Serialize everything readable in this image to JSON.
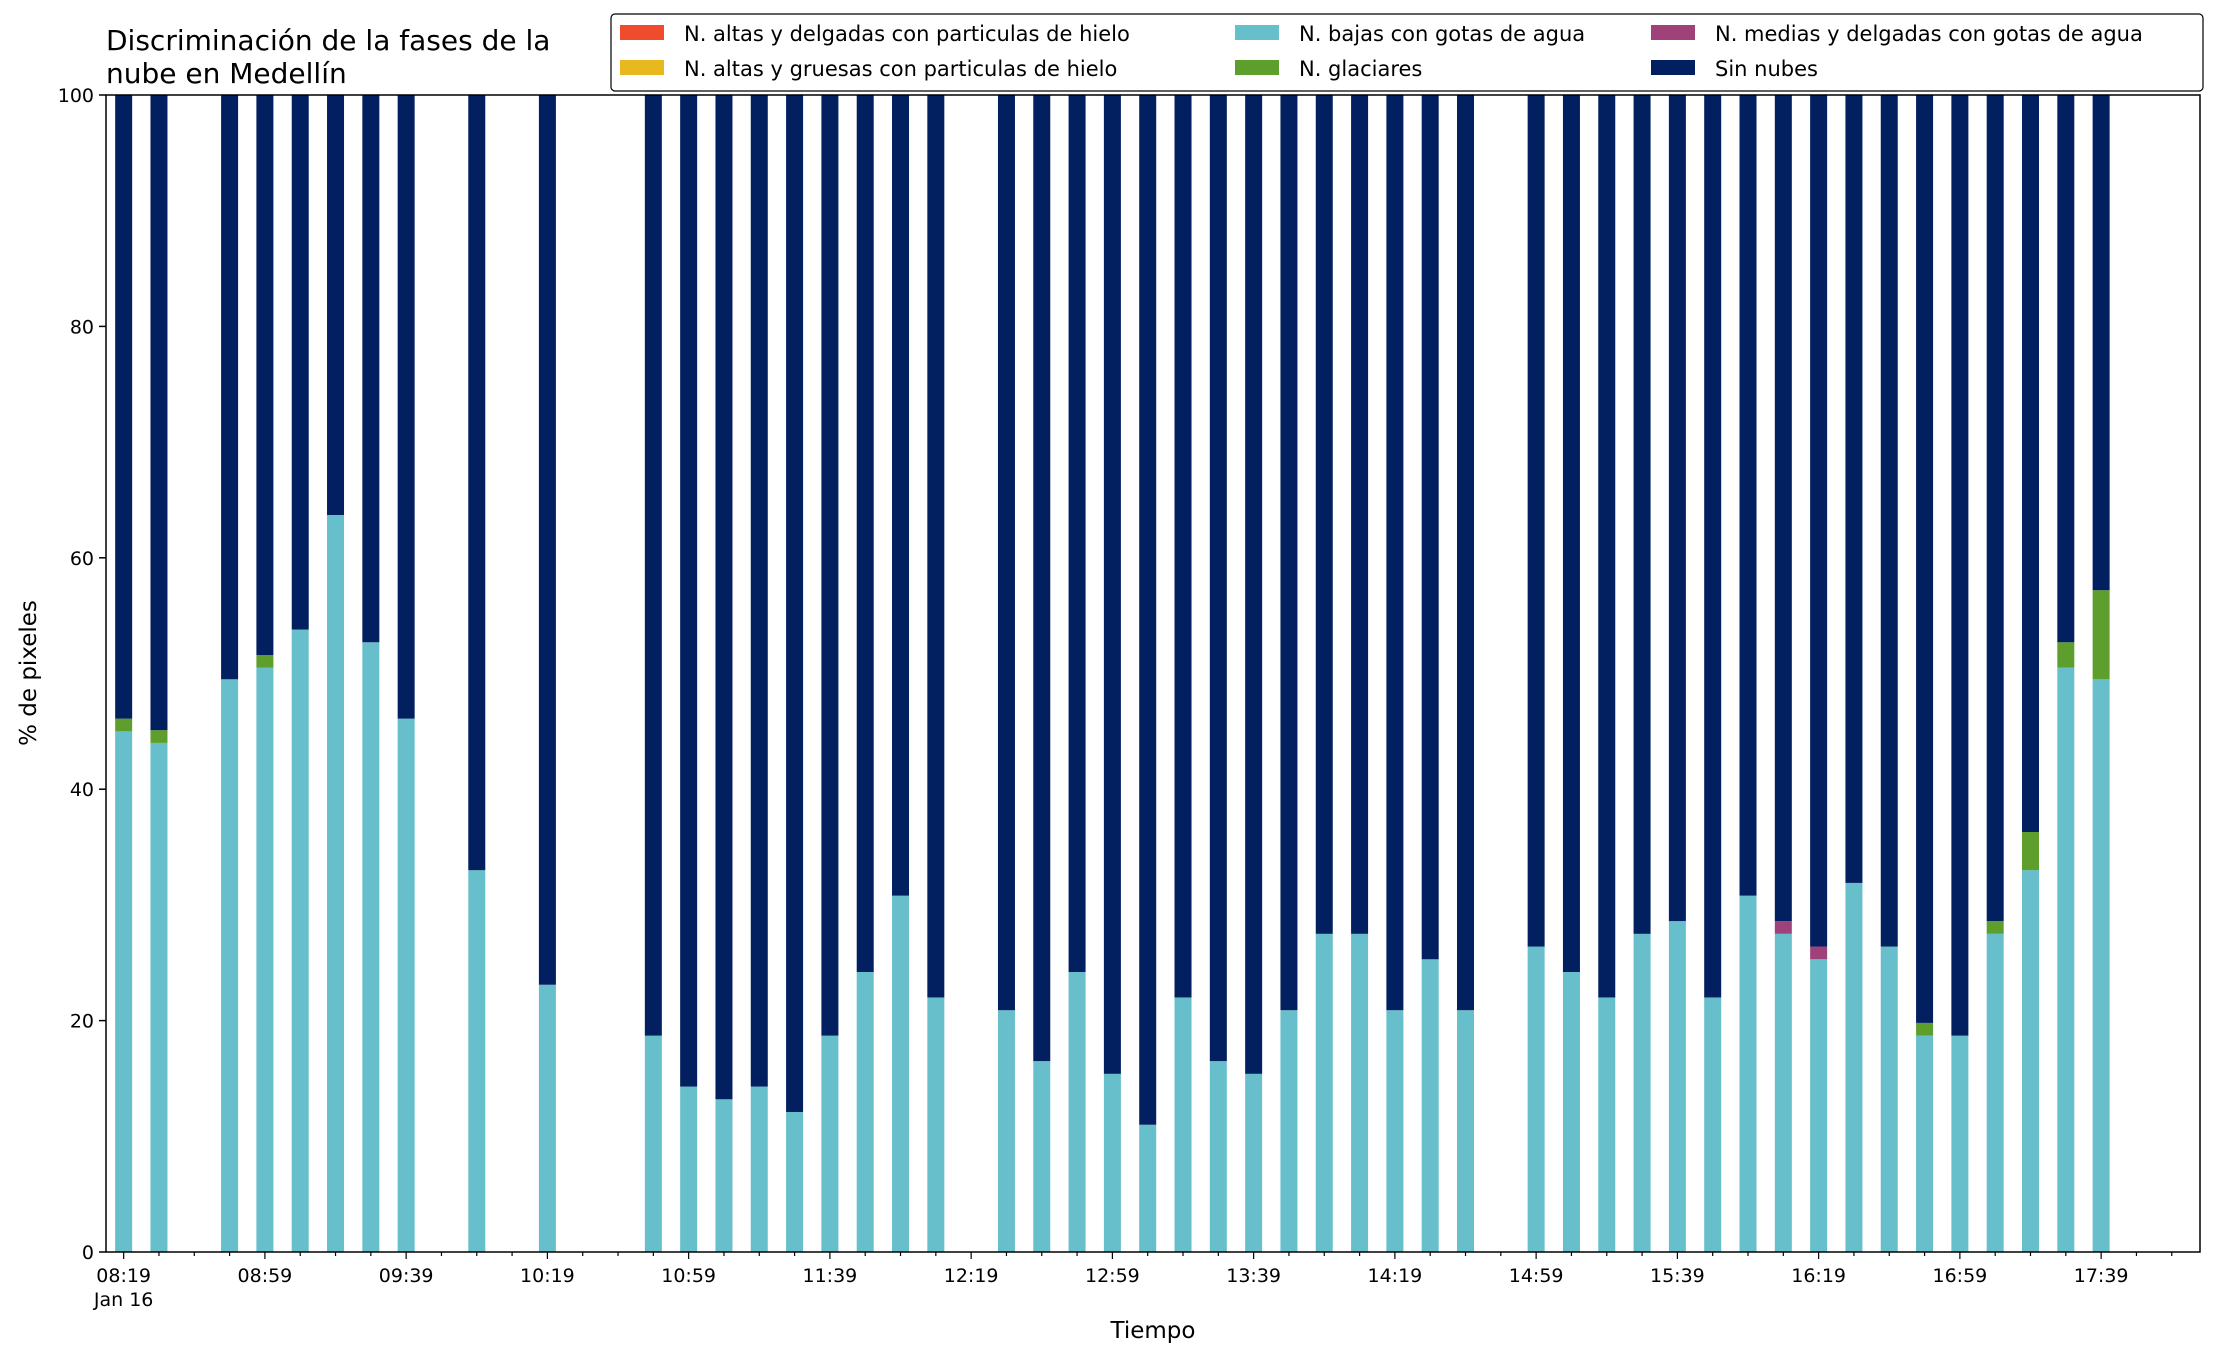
{
  "chart_data": {
    "type": "bar",
    "stacked": true,
    "title_lines": [
      "Discriminación de la fases de la",
      "nube en Medellín"
    ],
    "xlabel": "Tiempo",
    "ylabel": "% de pixeles",
    "ylim": [
      0,
      100
    ],
    "yticks": [
      0,
      20,
      40,
      60,
      80,
      100
    ],
    "x_start": "08:19",
    "x_start_date": "Jan 16",
    "x_interval_minutes": 10,
    "x_ticks": [
      "08:19",
      "08:59",
      "09:39",
      "10:19",
      "10:59",
      "11:39",
      "12:19",
      "12:59",
      "13:39",
      "14:19",
      "14:59",
      "15:39",
      "16:19",
      "16:59",
      "17:39"
    ],
    "x_range_slots": [
      -0.5,
      58.8
    ],
    "grid": false,
    "legend": {
      "placement": "top-right",
      "columns": 3
    },
    "series": [
      {
        "name": "N. altas y delgadas con particulas de hielo",
        "color": "#ee4c2c"
      },
      {
        "name": "N. altas y gruesas con particulas de hielo",
        "color": "#e8b91f"
      },
      {
        "name": "N. bajas con gotas de agua",
        "color": "#67bfcc"
      },
      {
        "name": "N. glaciares",
        "color": "#5e9e2d"
      },
      {
        "name": "N. medias y delgadas con gotas de agua",
        "color": "#a0427a"
      },
      {
        "name": "Sin nubes",
        "color": "#021f5f"
      }
    ],
    "bars": [
      {
        "time": "08:19",
        "bajas": 45.0,
        "glaciares": 1.1,
        "medias": 0,
        "sin_nubes": 53.9
      },
      {
        "time": "08:29",
        "bajas": 44.0,
        "glaciares": 1.1,
        "medias": 0,
        "sin_nubes": 54.9
      },
      {
        "time": "08:49",
        "bajas": 49.5,
        "glaciares": 0,
        "medias": 0,
        "sin_nubes": 50.5
      },
      {
        "time": "08:59",
        "bajas": 50.5,
        "glaciares": 1.1,
        "medias": 0,
        "sin_nubes": 48.4
      },
      {
        "time": "09:09",
        "bajas": 53.8,
        "glaciares": 0,
        "medias": 0,
        "sin_nubes": 46.2
      },
      {
        "time": "09:19",
        "bajas": 63.7,
        "glaciares": 0,
        "medias": 0,
        "sin_nubes": 36.3
      },
      {
        "time": "09:29",
        "bajas": 52.7,
        "glaciares": 0,
        "medias": 0,
        "sin_nubes": 47.3
      },
      {
        "time": "09:39",
        "bajas": 46.1,
        "glaciares": 0,
        "medias": 0,
        "sin_nubes": 53.9
      },
      {
        "time": "09:59",
        "bajas": 33.0,
        "glaciares": 0,
        "medias": 0,
        "sin_nubes": 67.0
      },
      {
        "time": "10:19",
        "bajas": 23.1,
        "glaciares": 0,
        "medias": 0,
        "sin_nubes": 76.9
      },
      {
        "time": "10:49",
        "bajas": 18.7,
        "glaciares": 0,
        "medias": 0,
        "sin_nubes": 81.3
      },
      {
        "time": "10:59",
        "bajas": 14.3,
        "glaciares": 0,
        "medias": 0,
        "sin_nubes": 85.7
      },
      {
        "time": "11:09",
        "bajas": 13.2,
        "glaciares": 0,
        "medias": 0,
        "sin_nubes": 86.8
      },
      {
        "time": "11:19",
        "bajas": 14.3,
        "glaciares": 0,
        "medias": 0,
        "sin_nubes": 85.7
      },
      {
        "time": "11:29",
        "bajas": 12.1,
        "glaciares": 0,
        "medias": 0,
        "sin_nubes": 87.9
      },
      {
        "time": "11:39",
        "bajas": 18.7,
        "glaciares": 0,
        "medias": 0,
        "sin_nubes": 81.3
      },
      {
        "time": "11:49",
        "bajas": 24.2,
        "glaciares": 0,
        "medias": 0,
        "sin_nubes": 75.8
      },
      {
        "time": "11:59",
        "bajas": 30.8,
        "glaciares": 0,
        "medias": 0,
        "sin_nubes": 69.2
      },
      {
        "time": "12:09",
        "bajas": 22.0,
        "glaciares": 0,
        "medias": 0,
        "sin_nubes": 78.0
      },
      {
        "time": "12:29",
        "bajas": 20.9,
        "glaciares": 0,
        "medias": 0,
        "sin_nubes": 79.1
      },
      {
        "time": "12:39",
        "bajas": 16.5,
        "glaciares": 0,
        "medias": 0,
        "sin_nubes": 83.5
      },
      {
        "time": "12:49",
        "bajas": 24.2,
        "glaciares": 0,
        "medias": 0,
        "sin_nubes": 75.8
      },
      {
        "time": "12:59",
        "bajas": 15.4,
        "glaciares": 0,
        "medias": 0,
        "sin_nubes": 84.6
      },
      {
        "time": "13:09",
        "bajas": 11.0,
        "glaciares": 0,
        "medias": 0,
        "sin_nubes": 89.0
      },
      {
        "time": "13:19",
        "bajas": 22.0,
        "glaciares": 0,
        "medias": 0,
        "sin_nubes": 78.0
      },
      {
        "time": "13:29",
        "bajas": 16.5,
        "glaciares": 0,
        "medias": 0,
        "sin_nubes": 83.5
      },
      {
        "time": "13:39",
        "bajas": 15.4,
        "glaciares": 0,
        "medias": 0,
        "sin_nubes": 84.6
      },
      {
        "time": "13:49",
        "bajas": 20.9,
        "glaciares": 0,
        "medias": 0,
        "sin_nubes": 79.1
      },
      {
        "time": "13:59",
        "bajas": 27.5,
        "glaciares": 0,
        "medias": 0,
        "sin_nubes": 72.5
      },
      {
        "time": "14:09",
        "bajas": 27.5,
        "glaciares": 0,
        "medias": 0,
        "sin_nubes": 72.5
      },
      {
        "time": "14:19",
        "bajas": 20.9,
        "glaciares": 0,
        "medias": 0,
        "sin_nubes": 79.1
      },
      {
        "time": "14:29",
        "bajas": 25.3,
        "glaciares": 0,
        "medias": 0,
        "sin_nubes": 74.7
      },
      {
        "time": "14:39",
        "bajas": 20.9,
        "glaciares": 0,
        "medias": 0,
        "sin_nubes": 79.1
      },
      {
        "time": "14:59",
        "bajas": 26.4,
        "glaciares": 0,
        "medias": 0,
        "sin_nubes": 73.6
      },
      {
        "time": "15:09",
        "bajas": 24.2,
        "glaciares": 0,
        "medias": 0,
        "sin_nubes": 75.8
      },
      {
        "time": "15:19",
        "bajas": 22.0,
        "glaciares": 0,
        "medias": 0,
        "sin_nubes": 78.0
      },
      {
        "time": "15:29",
        "bajas": 27.5,
        "glaciares": 0,
        "medias": 0,
        "sin_nubes": 72.5
      },
      {
        "time": "15:39",
        "bajas": 28.6,
        "glaciares": 0,
        "medias": 0,
        "sin_nubes": 71.4
      },
      {
        "time": "15:49",
        "bajas": 22.0,
        "glaciares": 0,
        "medias": 0,
        "sin_nubes": 78.0
      },
      {
        "time": "15:59",
        "bajas": 30.8,
        "glaciares": 0,
        "medias": 0,
        "sin_nubes": 69.2
      },
      {
        "time": "16:09",
        "bajas": 27.5,
        "glaciares": 0,
        "medias": 1.1,
        "sin_nubes": 71.4
      },
      {
        "time": "16:19",
        "bajas": 25.3,
        "glaciares": 0,
        "medias": 1.1,
        "sin_nubes": 73.6
      },
      {
        "time": "16:29",
        "bajas": 31.9,
        "glaciares": 0,
        "medias": 0,
        "sin_nubes": 68.1
      },
      {
        "time": "16:39",
        "bajas": 26.4,
        "glaciares": 0,
        "medias": 0,
        "sin_nubes": 73.6
      },
      {
        "time": "16:49",
        "bajas": 18.7,
        "glaciares": 1.1,
        "medias": 0,
        "sin_nubes": 80.2
      },
      {
        "time": "16:59",
        "bajas": 18.7,
        "glaciares": 0,
        "medias": 0,
        "sin_nubes": 81.3
      },
      {
        "time": "17:09",
        "bajas": 27.5,
        "glaciares": 1.1,
        "medias": 0,
        "sin_nubes": 71.4
      },
      {
        "time": "17:19",
        "bajas": 33.0,
        "glaciares": 3.3,
        "medias": 0,
        "sin_nubes": 63.7
      },
      {
        "time": "17:29",
        "bajas": 50.5,
        "glaciares": 2.2,
        "medias": 0,
        "sin_nubes": 47.3
      },
      {
        "time": "17:39",
        "bajas": 49.5,
        "glaciares": 7.7,
        "medias": 0,
        "sin_nubes": 42.8
      }
    ]
  }
}
